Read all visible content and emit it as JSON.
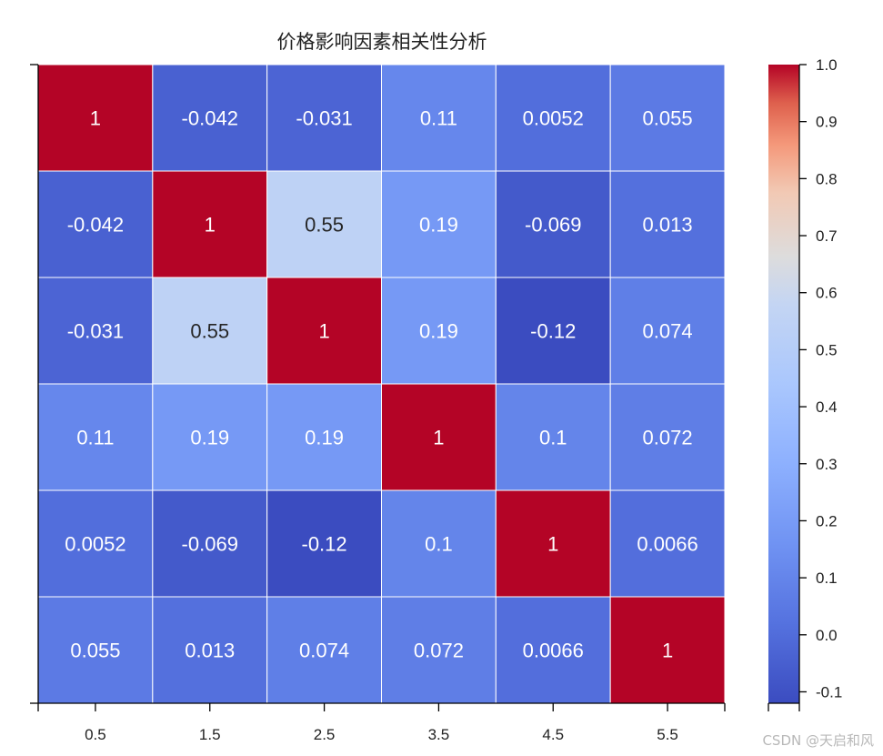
{
  "chart_data": {
    "type": "heatmap",
    "title": "价格影响因素相关性分析",
    "xticks": [
      "0.5",
      "1.5",
      "2.5",
      "3.5",
      "4.5",
      "5.5"
    ],
    "matrix": [
      [
        1,
        -0.042,
        -0.031,
        0.11,
        0.0052,
        0.055
      ],
      [
        -0.042,
        1,
        0.55,
        0.19,
        -0.069,
        0.013
      ],
      [
        -0.031,
        0.55,
        1,
        0.19,
        -0.12,
        0.074
      ],
      [
        0.11,
        0.19,
        0.19,
        1,
        0.1,
        0.072
      ],
      [
        0.0052,
        -0.069,
        -0.12,
        0.1,
        1,
        0.0066
      ],
      [
        0.055,
        0.013,
        0.074,
        0.072,
        0.0066,
        1
      ]
    ],
    "annotations": [
      [
        "1",
        "-0.042",
        "-0.031",
        "0.11",
        "0.0052",
        "0.055"
      ],
      [
        "-0.042",
        "1",
        "0.55",
        "0.19",
        "-0.069",
        "0.013"
      ],
      [
        "-0.031",
        "0.55",
        "1",
        "0.19",
        "-0.12",
        "0.074"
      ],
      [
        "0.11",
        "0.19",
        "0.19",
        "1",
        "0.1",
        "0.072"
      ],
      [
        "0.0052",
        "-0.069",
        "-0.12",
        "0.1",
        "1",
        "0.0066"
      ],
      [
        "0.055",
        "0.013",
        "0.074",
        "0.072",
        "0.0066",
        "1"
      ]
    ],
    "colormap": "coolwarm",
    "vmin": -0.12,
    "vmax": 1.0,
    "colorbar_ticks": [
      "-0.1",
      "0.0",
      "0.1",
      "0.2",
      "0.3",
      "0.4",
      "0.5",
      "0.6",
      "0.7",
      "0.8",
      "0.9",
      "1.0"
    ],
    "colorbar_tick_values": [
      -0.1,
      0,
      0.1,
      0.2,
      0.3,
      0.4,
      0.5,
      0.6,
      0.7,
      0.8,
      0.9,
      1.0
    ]
  },
  "watermark": "CSDN @天启和风"
}
